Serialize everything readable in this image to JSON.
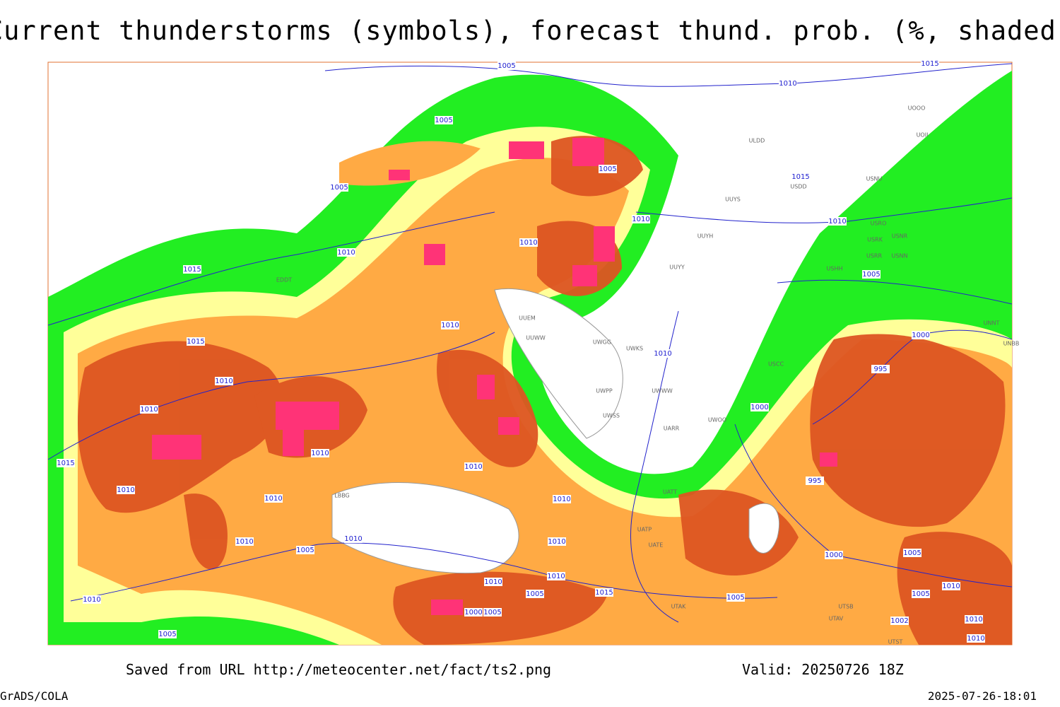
{
  "header": {
    "title": "Current thunderstorms (symbols), forecast thund. prob. (%, shaded)"
  },
  "footer": {
    "source": "Saved from URL http://meteocenter.net/fact/ts2.png",
    "valid": "Valid: 20250726 18Z",
    "software": "GrADS/COLA",
    "timestamp": "2025-07-26-18:01"
  },
  "isobar_labels": [
    "1005",
    "1010",
    "1005",
    "1005",
    "1005",
    "1015",
    "1010",
    "1010",
    "1010",
    "1010",
    "1015",
    "1005",
    "1015",
    "1010",
    "1010",
    "1000",
    "995",
    "1010",
    "1010",
    "1000",
    "1010",
    "1015",
    "1010",
    "1010",
    "995",
    "1010",
    "1010",
    "1010",
    "1010",
    "1005",
    "1010",
    "1000",
    "1010",
    "1010",
    "1015",
    "1005",
    "1005",
    "1010",
    "1005",
    "1000",
    "1005",
    "1010",
    "1005",
    "1010",
    "1010",
    "1002",
    "1005",
    "1015"
  ],
  "station_labels": [
    "UOOO",
    "UOII",
    "ULDD",
    "USNU",
    "USDD",
    "UUYS",
    "USRO",
    "USNR",
    "USRK",
    "UUYH",
    "USRR",
    "USNN",
    "UUYY",
    "USHH",
    "EDDT",
    "UUEM",
    "UUWW",
    "UWGG",
    "UWKS",
    "UNNT",
    "UNBB",
    "USCC",
    "UWPP",
    "UWWW",
    "UWSS",
    "UARR",
    "UWOO",
    "UATT",
    "UATP",
    "UATE",
    "UTAK",
    "UTSB",
    "UTAV",
    "UTST",
    "LBBG"
  ]
}
